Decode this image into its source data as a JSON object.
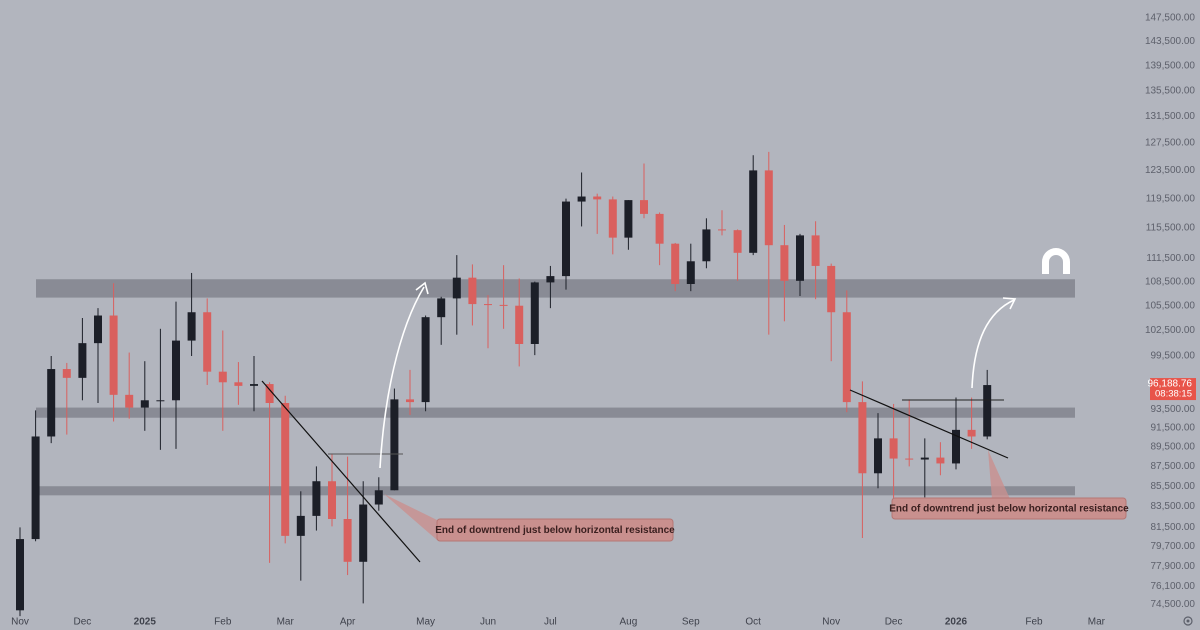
{
  "chart_data": {
    "type": "candlestick",
    "categories": [
      "Nov",
      null,
      null,
      null,
      "Dec",
      null,
      null,
      null,
      "2025",
      null,
      null,
      null,
      null,
      "Feb",
      null,
      null,
      null,
      "Mar",
      null,
      null,
      null,
      "Apr",
      null,
      null,
      null,
      null,
      "May",
      null,
      null,
      null,
      "Jun",
      null,
      null,
      null,
      "Jul",
      null,
      null,
      null,
      null,
      "Aug",
      null,
      null,
      null,
      "Sep",
      null,
      null,
      null,
      "Oct",
      null,
      null,
      null,
      null,
      "Nov",
      null,
      null,
      null,
      "Dec",
      null,
      null,
      null,
      "2026",
      null,
      null,
      null,
      null,
      "Feb",
      null,
      null,
      null,
      "Mar"
    ],
    "open": [
      74000,
      80400,
      90600,
      98000,
      97000,
      101000,
      104300,
      95100,
      93700,
      94500,
      94500,
      101300,
      104700,
      97700,
      96500,
      96100,
      96300,
      94200,
      80700,
      82600,
      86000,
      82300,
      78300,
      83700,
      85100,
      94600,
      94300,
      104100,
      106400,
      109000,
      105700,
      105600,
      105500,
      100900,
      108400,
      109200,
      119100,
      119800,
      119400,
      114200,
      119300,
      117400,
      113400,
      108200,
      111100,
      115300,
      115200,
      112200,
      123500,
      113200,
      108600,
      114500,
      110500,
      104700,
      94300,
      86800,
      90400,
      88300,
      88200,
      88400,
      87800,
      91300,
      90600,
      null,
      null,
      null,
      null,
      null,
      null,
      null
    ],
    "high": [
      81500,
      93400,
      99500,
      98700,
      104000,
      105200,
      108300,
      99900,
      98900,
      102700,
      106000,
      109600,
      106400,
      102500,
      98800,
      99500,
      96500,
      95000,
      85000,
      87500,
      88800,
      88500,
      86000,
      86400,
      95800,
      97900,
      104300,
      106600,
      111900,
      110700,
      106800,
      110600,
      108900,
      108500,
      110500,
      119500,
      123200,
      120200,
      119800,
      119300,
      124500,
      117600,
      113500,
      113400,
      116800,
      117900,
      115300,
      125700,
      126200,
      115900,
      114700,
      116400,
      110800,
      107400,
      96600,
      93100,
      94100,
      94600,
      90400,
      90000,
      94800,
      94800,
      97900,
      null,
      null,
      null,
      null,
      null,
      null,
      null
    ],
    "low": [
      73500,
      80200,
      89900,
      90800,
      94500,
      94200,
      92200,
      92500,
      91200,
      89200,
      89300,
      99500,
      96200,
      91200,
      94000,
      93300,
      78200,
      80000,
      76600,
      81200,
      81600,
      77100,
      74600,
      83100,
      85100,
      92900,
      93300,
      100800,
      102000,
      103100,
      100400,
      102700,
      98300,
      99600,
      105200,
      107500,
      115700,
      114700,
      112000,
      112600,
      116800,
      110600,
      107300,
      107300,
      110200,
      114500,
      108600,
      111900,
      102000,
      103600,
      106700,
      106300,
      98900,
      93200,
      80500,
      85300,
      83900,
      87500,
      84400,
      86600,
      87200,
      89300,
      90300,
      null,
      null,
      null,
      null,
      null,
      null,
      null
    ],
    "close": [
      80400,
      90600,
      98000,
      97000,
      101000,
      104300,
      95100,
      93700,
      94500,
      94500,
      101300,
      104700,
      97700,
      96500,
      96100,
      96300,
      94200,
      80700,
      82600,
      86000,
      82300,
      78300,
      83700,
      85100,
      94600,
      94300,
      104100,
      106400,
      109000,
      105700,
      105600,
      105500,
      100900,
      108400,
      109200,
      119100,
      119800,
      119400,
      114200,
      119300,
      117400,
      113400,
      108200,
      111100,
      115300,
      115200,
      112200,
      123500,
      113200,
      108600,
      114500,
      110500,
      104700,
      94300,
      86800,
      90400,
      88300,
      88200,
      88400,
      87800,
      91300,
      90600,
      96188.76,
      null,
      null,
      null,
      null,
      null,
      null,
      null
    ],
    "up_color": "#1c1f28",
    "down_color": "#d9605e",
    "log_scale": true,
    "grid": false,
    "ylim": [
      73000,
      150600
    ],
    "yticks": [
      {
        "value": 147500,
        "label": "147,500.00"
      },
      {
        "value": 143500,
        "label": "143,500.00"
      },
      {
        "value": 139500,
        "label": "139,500.00"
      },
      {
        "value": 135500,
        "label": "135,500.00"
      },
      {
        "value": 131500,
        "label": "131,500.00"
      },
      {
        "value": 127500,
        "label": "127,500.00"
      },
      {
        "value": 123500,
        "label": "123,500.00"
      },
      {
        "value": 119500,
        "label": "119,500.00"
      },
      {
        "value": 115500,
        "label": "115,500.00"
      },
      {
        "value": 111500,
        "label": "111,500.00"
      },
      {
        "value": 108500,
        "label": "108,500.00"
      },
      {
        "value": 105500,
        "label": "105,500.00"
      },
      {
        "value": 102500,
        "label": "102,500.00"
      },
      {
        "value": 99500,
        "label": "99,500.00"
      },
      {
        "value": 93500,
        "label": "93,500.00"
      },
      {
        "value": 91500,
        "label": "91,500.00"
      },
      {
        "value": 89500,
        "label": "89,500.00"
      },
      {
        "value": 87500,
        "label": "87,500.00"
      },
      {
        "value": 85500,
        "label": "85,500.00"
      },
      {
        "value": 83500,
        "label": "83,500.00"
      },
      {
        "value": 81500,
        "label": "81,500.00"
      },
      {
        "value": 79700,
        "label": "79,700.00"
      },
      {
        "value": 77900,
        "label": "77,900.00"
      },
      {
        "value": 76100,
        "label": "76,100.00"
      },
      {
        "value": 74500,
        "label": "74,500.00"
      }
    ],
    "last_price": {
      "value": 96188.76,
      "label": "96,188.76"
    },
    "countdown": "08:38:15",
    "zones": [
      {
        "low": 106500,
        "high": 108800
      },
      {
        "low": 92600,
        "high": 93700
      },
      {
        "low": 84600,
        "high": 85500
      }
    ],
    "annotations": [
      "End of downtrend just below horizontal resistance",
      "End of downtrend just below horizontal resistance"
    ]
  }
}
